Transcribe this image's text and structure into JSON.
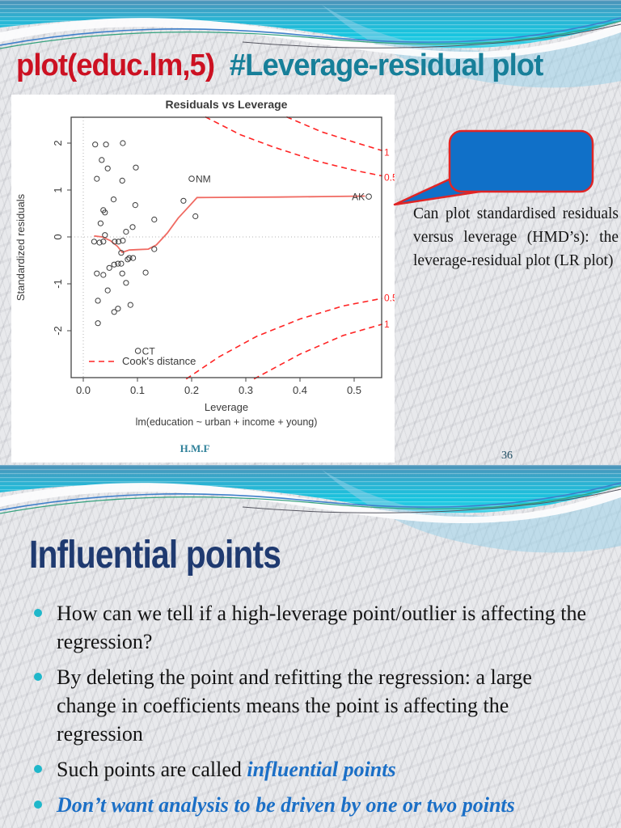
{
  "slide1": {
    "title_code": "plot(educ.lm,5)",
    "title_rest": "#Leverage-residual plot",
    "callout_text": "Can plot standardised residuals versus leverage (HMD’s): the leverage-residual plot (LR plot)",
    "footer": "H.M.F",
    "page_number": "36"
  },
  "chart_data": {
    "type": "scatter",
    "title": "Residuals vs Leverage",
    "xlabel": "Leverage",
    "sublabel": "lm(education ~ urban + income + young)",
    "ylabel": "Standardized residuals",
    "xlim": [
      -0.022,
      0.562
    ],
    "ylim": [
      -3.05,
      2.56
    ],
    "xticks": [
      0.0,
      0.1,
      0.2,
      0.3,
      0.4,
      0.5
    ],
    "yticks": [
      -2,
      -1,
      0,
      1,
      2
    ],
    "grid": false,
    "legend_label": "Cook's distance",
    "points": [
      [
        0.022,
        1.97
      ],
      [
        0.042,
        1.97
      ],
      [
        0.073,
        2.0
      ],
      [
        0.034,
        1.64
      ],
      [
        0.045,
        1.46
      ],
      [
        0.097,
        1.48
      ],
      [
        0.025,
        1.24
      ],
      [
        0.072,
        1.2
      ],
      [
        0.056,
        0.8
      ],
      [
        0.185,
        0.77
      ],
      [
        0.096,
        0.68
      ],
      [
        0.037,
        0.57
      ],
      [
        0.04,
        0.52
      ],
      [
        0.207,
        0.44
      ],
      [
        0.131,
        0.37
      ],
      [
        0.032,
        0.29
      ],
      [
        0.091,
        0.21
      ],
      [
        0.079,
        0.11
      ],
      [
        0.04,
        0.04
      ],
      [
        0.02,
        -0.1
      ],
      [
        0.03,
        -0.12
      ],
      [
        0.037,
        -0.1
      ],
      [
        0.058,
        -0.1
      ],
      [
        0.065,
        -0.1
      ],
      [
        0.073,
        -0.08
      ],
      [
        0.131,
        -0.26
      ],
      [
        0.07,
        -0.34
      ],
      [
        0.085,
        -0.45
      ],
      [
        0.092,
        -0.45
      ],
      [
        0.082,
        -0.48
      ],
      [
        0.057,
        -0.59
      ],
      [
        0.064,
        -0.57
      ],
      [
        0.07,
        -0.57
      ],
      [
        0.048,
        -0.66
      ],
      [
        0.025,
        -0.78
      ],
      [
        0.037,
        -0.81
      ],
      [
        0.072,
        -0.78
      ],
      [
        0.115,
        -0.76
      ],
      [
        0.079,
        -0.98
      ],
      [
        0.045,
        -1.14
      ],
      [
        0.027,
        -1.36
      ],
      [
        0.087,
        -1.45
      ],
      [
        0.057,
        -1.6
      ],
      [
        0.064,
        -1.53
      ],
      [
        0.027,
        -1.84
      ]
    ],
    "labeled_points": [
      {
        "label": "NM",
        "x": 0.2,
        "y": 1.24,
        "side": "right"
      },
      {
        "label": "AK",
        "x": 0.527,
        "y": 0.86,
        "side": "left"
      },
      {
        "label": "CT",
        "x": 0.101,
        "y": -2.43,
        "side": "right"
      }
    ],
    "smooth_line": [
      [
        0.02,
        0.02
      ],
      [
        0.035,
        0.0
      ],
      [
        0.05,
        -0.08
      ],
      [
        0.063,
        -0.2
      ],
      [
        0.072,
        -0.33
      ],
      [
        0.085,
        -0.28
      ],
      [
        0.1,
        -0.27
      ],
      [
        0.12,
        -0.26
      ],
      [
        0.135,
        -0.17
      ],
      [
        0.155,
        0.08
      ],
      [
        0.175,
        0.4
      ],
      [
        0.195,
        0.65
      ],
      [
        0.21,
        0.84
      ],
      [
        0.28,
        0.845
      ],
      [
        0.36,
        0.85
      ],
      [
        0.44,
        0.86
      ],
      [
        0.52,
        0.87
      ]
    ],
    "cooks_contours": [
      {
        "level": "0.5",
        "points": [
          [
            0.225,
            2.56
          ],
          [
            0.29,
            2.18
          ],
          [
            0.35,
            1.92
          ],
          [
            0.43,
            1.62
          ],
          [
            0.5,
            1.42
          ],
          [
            0.552,
            1.3
          ]
        ],
        "label_y": 1.27
      },
      {
        "level": "1",
        "points": [
          [
            0.375,
            2.56
          ],
          [
            0.44,
            2.24
          ],
          [
            0.5,
            2.02
          ],
          [
            0.552,
            1.84
          ]
        ],
        "label_y": 1.8
      },
      {
        "level": "0.5",
        "points": [
          [
            0.19,
            -3.03
          ],
          [
            0.25,
            -2.56
          ],
          [
            0.32,
            -2.12
          ],
          [
            0.4,
            -1.75
          ],
          [
            0.48,
            -1.47
          ],
          [
            0.552,
            -1.31
          ]
        ],
        "label_y": -1.3
      },
      {
        "level": "1",
        "points": [
          [
            0.315,
            -3.03
          ],
          [
            0.4,
            -2.5
          ],
          [
            0.48,
            -2.1
          ],
          [
            0.552,
            -1.86
          ]
        ],
        "label_y": -1.86
      }
    ]
  },
  "slide2": {
    "title": "Influential points",
    "bullets": [
      {
        "segments": [
          {
            "t": "How can we tell if a high-leverage point/outlier is affecting the regression?",
            "s": "plain"
          }
        ]
      },
      {
        "segments": [
          {
            "t": "By deleting the point and refitting the regression: a large change in coefficients means the point is affecting the regression",
            "s": "plain"
          }
        ]
      },
      {
        "segments": [
          {
            "t": "Such points are called ",
            "s": "plain"
          },
          {
            "t": "influential points",
            "s": "em"
          }
        ]
      },
      {
        "segments": [
          {
            "t": "Don’t want analysis to be driven by one or two points",
            "s": "em"
          }
        ]
      }
    ]
  },
  "colors": {
    "accent_red": "#cc1122",
    "accent_teal": "#177f99",
    "title_navy": "#1f3a70",
    "bullet_cyan": "#1fb7ca",
    "body_blue": "#1b6fc6",
    "callout_blue": "#1070c8",
    "callout_border": "#e02525",
    "plot_line_red": "#f06a62",
    "cooks_red": "#ff2424",
    "footer_teal": "#2e8099"
  }
}
